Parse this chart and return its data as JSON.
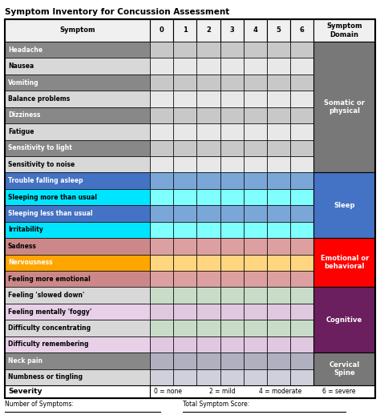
{
  "title": "Symptom Inventory for Concussion Assessment",
  "header_row": [
    "Symptom",
    "0",
    "1",
    "2",
    "3",
    "4",
    "5",
    "6",
    "Symptom\nDomain"
  ],
  "symptoms": [
    "Headache",
    "Nausea",
    "Vomiting",
    "Balance problems",
    "Dizziness",
    "Fatigue",
    "Sensitivity to light",
    "Sensitivity to noise",
    "Trouble falling asleep",
    "Sleeping more than usual",
    "Sleeping less than usual",
    "Irritability",
    "Sadness",
    "Nervousness",
    "Feeling more emotional",
    "Feeling 'slowed down'",
    "Feeling mentally 'foggy'",
    "Difficulty concentrating",
    "Difficulty remembering",
    "Neck pain",
    "Numbness or tingling"
  ],
  "domains": [
    {
      "name": "Somatic or\nphysical",
      "start": 0,
      "end": 7,
      "bg": "#787878",
      "text": "white"
    },
    {
      "name": "Sleep",
      "start": 8,
      "end": 11,
      "bg": "#4472C4",
      "text": "white"
    },
    {
      "name": "Emotional or\nbehavioral",
      "start": 12,
      "end": 14,
      "bg": "#FF0000",
      "text": "white"
    },
    {
      "name": "Cognitive",
      "start": 15,
      "end": 18,
      "bg": "#6B1F5E",
      "text": "white"
    },
    {
      "name": "Cervical\nSpine",
      "start": 19,
      "end": 20,
      "bg": "#787878",
      "text": "white"
    }
  ],
  "row_name_colors": [
    "#888888",
    "#D8D8D8",
    "#888888",
    "#D8D8D8",
    "#888888",
    "#D8D8D8",
    "#888888",
    "#D8D8D8",
    "#4472C4",
    "#00E5FF",
    "#4472C4",
    "#00E5FF",
    "#CC8888",
    "#FFA500",
    "#CC8888",
    "#D8D8D8",
    "#E8D0E8",
    "#D8D8D8",
    "#E8D0E8",
    "#888888",
    "#D8D8D8"
  ],
  "row_cell_colors": [
    "#C8C8C8",
    "#E8E8E8",
    "#C8C8C8",
    "#E8E8E8",
    "#C8C8C8",
    "#E8E8E8",
    "#C8C8C8",
    "#E8E8E8",
    "#7BA7D8",
    "#80FFFF",
    "#7BA7D8",
    "#80FFFF",
    "#DDA0A0",
    "#FFD580",
    "#DDA0A0",
    "#C8DCC8",
    "#E0C8E0",
    "#C8DCC8",
    "#E0C8E0",
    "#B0B0C0",
    "#D0D0DC"
  ],
  "text_colors_name": [
    "white",
    "black",
    "white",
    "black",
    "white",
    "black",
    "white",
    "black",
    "white",
    "black",
    "white",
    "black",
    "black",
    "white",
    "black",
    "black",
    "black",
    "black",
    "black",
    "white",
    "black"
  ],
  "severity_text": "Severity",
  "severity_scale_parts": [
    "0 = none",
    "2 = mild",
    "4 = moderate",
    "6 = severe"
  ],
  "bottom_left": "Number of Symptoms:",
  "bottom_right": "Total Symptom Score:",
  "col_props": [
    2.6,
    0.42,
    0.42,
    0.42,
    0.42,
    0.42,
    0.42,
    0.42,
    1.1
  ],
  "figsize": [
    4.74,
    5.23
  ],
  "dpi": 100
}
